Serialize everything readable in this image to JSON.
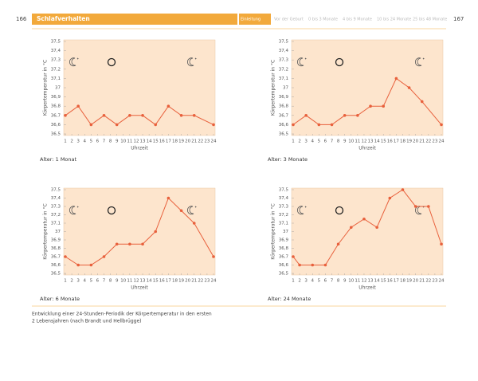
{
  "header": {
    "left_page": "166",
    "section": "Schlafverhalten",
    "tabs": [
      "Einleitung",
      "Vor der Geburt",
      "0 bis 3 Monate",
      "4 bis 9 Monate",
      "10 bis 24 Monate",
      "25 bis 48 Monate"
    ],
    "right_page": "167"
  },
  "caption": [
    "Entwicklung einer 24-Stunden-Periodik der Körpertemperatur in den ersten",
    "2 Lebensjahren (nach Brandt und Hellbrügge)"
  ],
  "chart_data": [
    {
      "type": "line",
      "title": "Alter: 1 Monat",
      "xlabel": "Uhrzeit",
      "ylabel": "Körpertemperatur in °C",
      "color": "#e8603c",
      "x": [
        1,
        3,
        5,
        7,
        9,
        11,
        13,
        15,
        17,
        19,
        21,
        24
      ],
      "values": [
        36.7,
        36.8,
        36.6,
        36.7,
        36.6,
        36.7,
        36.7,
        36.6,
        36.8,
        36.7,
        36.7,
        36.6
      ],
      "xlim": [
        1,
        24
      ],
      "xticks": [
        1,
        2,
        3,
        4,
        5,
        6,
        7,
        8,
        9,
        10,
        11,
        12,
        13,
        14,
        15,
        16,
        17,
        18,
        19,
        20,
        21,
        22,
        23,
        24
      ],
      "ylim": [
        36.5,
        37.5
      ],
      "yticks": [
        {
          "value": 36.5,
          "label": "36,5"
        },
        {
          "value": 36.6,
          "label": "36,6"
        },
        {
          "value": 36.7,
          "label": "36,7"
        },
        {
          "value": 36.8,
          "label": "36,8"
        },
        {
          "value": 36.9,
          "label": "36,9"
        },
        37,
        {
          "value": 37.1,
          "label": "37,1"
        },
        {
          "value": 37.2,
          "label": "37,2"
        },
        {
          "value": 37.3,
          "label": "37,3"
        },
        {
          "value": 37.4,
          "label": "37,4"
        },
        {
          "value": 37.5,
          "label": "37,5"
        }
      ]
    },
    {
      "type": "line",
      "title": "Alter: 3 Monate",
      "xlabel": "Uhrzeit",
      "ylabel": "Körpertemperatur in °C",
      "color": "#e8603c",
      "x": [
        1,
        3,
        5,
        7,
        9,
        11,
        13,
        15,
        17,
        19,
        21,
        24
      ],
      "values": [
        36.6,
        36.7,
        36.6,
        36.6,
        36.7,
        36.7,
        36.8,
        36.8,
        37.1,
        37.0,
        36.85,
        36.6
      ],
      "xlim": [
        1,
        24
      ],
      "xticks": [
        1,
        2,
        3,
        4,
        5,
        6,
        7,
        8,
        9,
        10,
        11,
        12,
        13,
        14,
        15,
        16,
        17,
        18,
        19,
        20,
        21,
        22,
        23,
        24
      ],
      "ylim": [
        36.5,
        37.5
      ],
      "yticks": [
        {
          "value": 36.5,
          "label": "36,5"
        },
        {
          "value": 36.6,
          "label": "36,6"
        },
        {
          "value": 36.7,
          "label": "36,7"
        },
        {
          "value": 36.8,
          "label": "36,8"
        },
        {
          "value": 36.9,
          "label": "36,9"
        },
        37,
        {
          "value": 37.1,
          "label": "37,1"
        },
        {
          "value": 37.2,
          "label": "37,2"
        },
        {
          "value": 37.3,
          "label": "37,3"
        },
        {
          "value": 37.4,
          "label": "37,4"
        },
        {
          "value": 37.5,
          "label": "37,5"
        }
      ]
    },
    {
      "type": "line",
      "title": "Alter: 6 Monate",
      "xlabel": "Uhrzeit",
      "ylabel": "Körpertemperatur in °C",
      "color": "#e8603c",
      "x": [
        1,
        3,
        5,
        7,
        9,
        11,
        13,
        15,
        17,
        19,
        21,
        24
      ],
      "values": [
        36.7,
        36.6,
        36.6,
        36.7,
        36.85,
        36.85,
        36.85,
        37.0,
        37.4,
        37.25,
        37.1,
        36.7
      ],
      "xlim": [
        1,
        24
      ],
      "xticks": [
        1,
        2,
        3,
        4,
        5,
        6,
        7,
        8,
        9,
        10,
        11,
        12,
        13,
        14,
        15,
        16,
        17,
        18,
        19,
        20,
        21,
        22,
        23,
        24
      ],
      "ylim": [
        36.5,
        37.5
      ],
      "yticks": [
        {
          "value": 36.5,
          "label": "36,5"
        },
        {
          "value": 36.6,
          "label": "36,6"
        },
        {
          "value": 36.7,
          "label": "36,7"
        },
        {
          "value": 36.8,
          "label": "36,8"
        },
        {
          "value": 36.9,
          "label": "36,9"
        },
        37,
        {
          "value": 37.1,
          "label": "37,1"
        },
        {
          "value": 37.2,
          "label": "37,2"
        },
        {
          "value": 37.3,
          "label": "37,3"
        },
        {
          "value": 37.4,
          "label": "37,4"
        },
        {
          "value": 37.5,
          "label": "37,5"
        }
      ]
    },
    {
      "type": "line",
      "title": "Alter: 24 Monate",
      "xlabel": "Uhrzeit",
      "ylabel": "Körpertemperatur in °C",
      "color": "#e8603c",
      "x": [
        1,
        2,
        4,
        6,
        8,
        10,
        12,
        14,
        16,
        18,
        20,
        22,
        24
      ],
      "values": [
        36.7,
        36.6,
        36.6,
        36.6,
        36.85,
        37.05,
        37.15,
        37.05,
        37.4,
        37.5,
        37.3,
        37.3,
        36.85
      ],
      "xlim": [
        1,
        24
      ],
      "xticks": [
        1,
        2,
        3,
        4,
        5,
        6,
        7,
        8,
        9,
        10,
        11,
        12,
        13,
        14,
        15,
        16,
        17,
        18,
        19,
        20,
        21,
        22,
        23,
        24
      ],
      "ylim": [
        36.5,
        37.5
      ],
      "yticks": [
        {
          "value": 36.5,
          "label": "36,5"
        },
        {
          "value": 36.6,
          "label": "36,6"
        },
        {
          "value": 36.7,
          "label": "36,7"
        },
        {
          "value": 36.8,
          "label": "36,8"
        },
        {
          "value": 36.9,
          "label": "36,9"
        },
        37,
        {
          "value": 37.1,
          "label": "37,1"
        },
        {
          "value": 37.2,
          "label": "37,2"
        },
        {
          "value": 37.3,
          "label": "37,3"
        },
        {
          "value": 37.4,
          "label": "37,4"
        },
        {
          "value": 37.5,
          "label": "37,5"
        }
      ]
    }
  ]
}
